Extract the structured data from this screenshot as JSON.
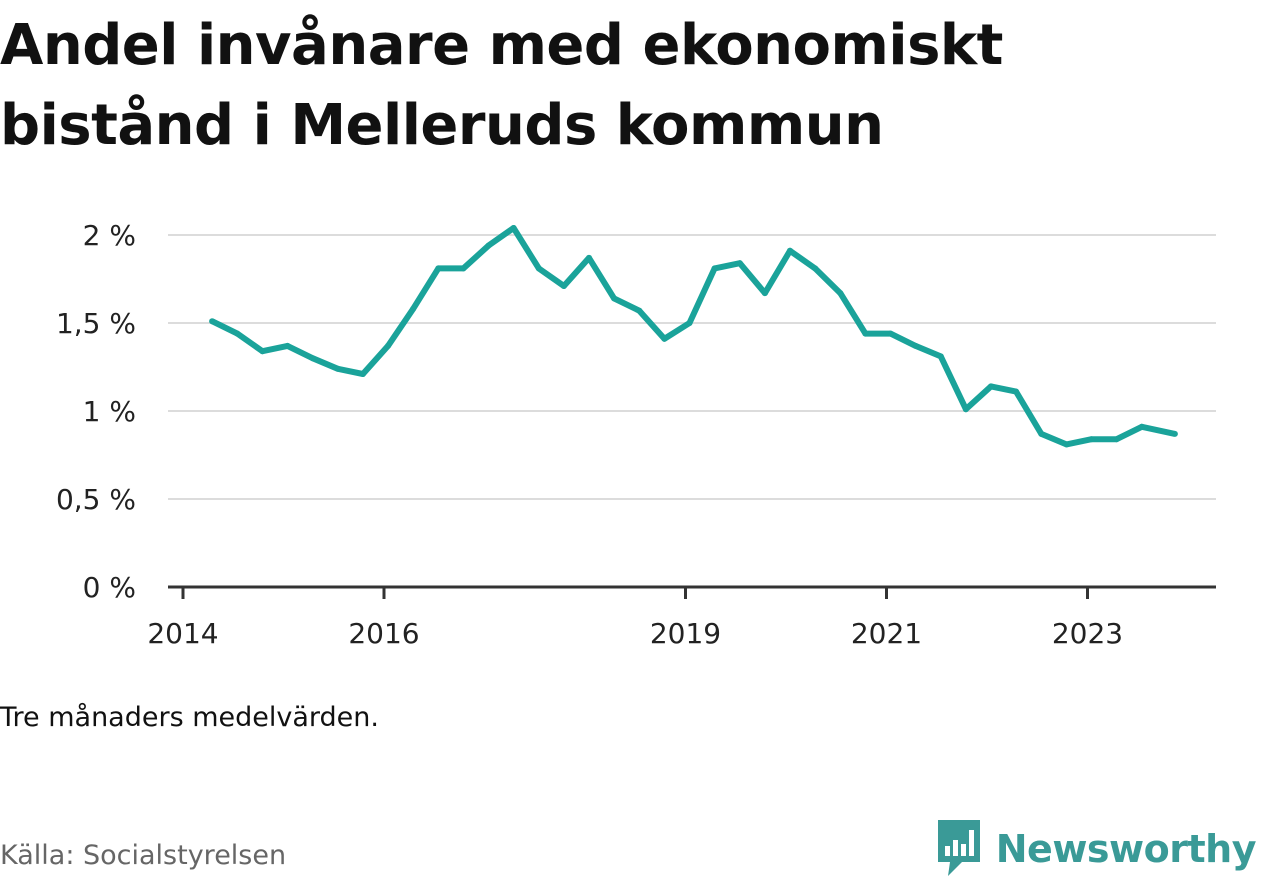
{
  "title_lines": [
    "Andel invånare med ekonomiskt",
    "bistånd i Melleruds kommun"
  ],
  "note": "Tre månaders medelvärden.",
  "source": "Källa: Socialstyrelsen",
  "brand": {
    "name": "Newsworthy",
    "icon": "newsworthy-logo-icon",
    "color": "#3a9a97"
  },
  "chart_data": {
    "type": "line",
    "title": "Andel invånare med ekonomiskt bistånd i Melleruds kommun",
    "xlabel": "",
    "ylabel": "",
    "ylim": [
      0,
      2
    ],
    "xlim": [
      2014.0,
      2024.25
    ],
    "yticks": [
      {
        "value": 0,
        "label": "0 %"
      },
      {
        "value": 0.5,
        "label": "0,5 %"
      },
      {
        "value": 1,
        "label": "1 %"
      },
      {
        "value": 1.5,
        "label": "1,5 %"
      },
      {
        "value": 2,
        "label": "2 %"
      }
    ],
    "xticks": [
      {
        "value": 2014,
        "label": "2014"
      },
      {
        "value": 2016,
        "label": "2016"
      },
      {
        "value": 2019,
        "label": "2019"
      },
      {
        "value": 2021,
        "label": "2021"
      },
      {
        "value": 2023,
        "label": "2023"
      }
    ],
    "grid": true,
    "line_color": "#1aa39a",
    "series": [
      {
        "x": [
          2014.29,
          2014.54,
          2014.79,
          2015.04,
          2015.29,
          2015.54,
          2015.79,
          2016.04,
          2016.29,
          2016.54,
          2016.79,
          2017.04,
          2017.29,
          2017.54,
          2017.79,
          2018.04,
          2018.29,
          2018.54,
          2018.79,
          2019.04,
          2019.29,
          2019.54,
          2019.79,
          2020.04,
          2020.29,
          2020.54,
          2020.79,
          2021.04,
          2021.29,
          2021.54,
          2021.79,
          2022.04,
          2022.29,
          2022.54,
          2022.79,
          2023.04,
          2023.29,
          2023.54,
          2023.87
        ],
        "values": [
          1.51,
          1.44,
          1.34,
          1.37,
          1.3,
          1.24,
          1.21,
          1.37,
          1.58,
          1.81,
          1.81,
          1.94,
          2.04,
          1.81,
          1.71,
          1.87,
          1.64,
          1.57,
          1.41,
          1.5,
          1.81,
          1.84,
          1.67,
          1.91,
          1.81,
          1.67,
          1.44,
          1.44,
          1.37,
          1.31,
          1.01,
          1.14,
          1.11,
          0.87,
          0.81,
          0.84,
          0.84,
          0.91,
          0.87
        ]
      }
    ]
  }
}
